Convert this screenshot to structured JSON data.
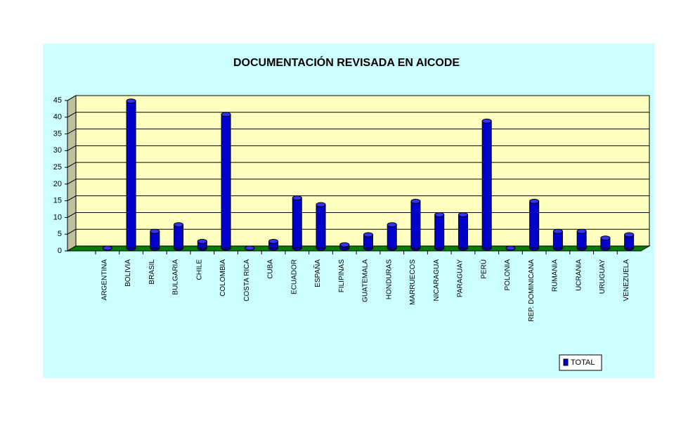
{
  "chart_data": {
    "type": "bar",
    "title": "DOCUMENTACIÓN REVISADA EN AICODE",
    "categories": [
      "ARGENTINA",
      "BOLIVIA",
      "BRASIL",
      "BULGARIA",
      "CHILE",
      "COLOMBIA",
      "COSTA RICA",
      "CUBA",
      "ECUADOR",
      "ESPAÑA",
      "FILIPINAS",
      "GUATEMALA",
      "HONDURAS",
      "MARRUECOS",
      "NICARAGUA",
      "PARAGUAY",
      "PERÚ",
      "POLONIA",
      "REP. DOMINICANA",
      "RUMANIA",
      "UCRANIA",
      "URUGUAY",
      "VENEZUELA"
    ],
    "series": [
      {
        "name": "TOTAL",
        "color": "#0000cc",
        "values": [
          0,
          44,
          5,
          7,
          2,
          40,
          0,
          2,
          15,
          13,
          1,
          4,
          7,
          14,
          10,
          10,
          38,
          0,
          14,
          5,
          5,
          3,
          4
        ]
      }
    ],
    "ylim": [
      0,
      45
    ],
    "yticks": [
      0,
      5,
      10,
      15,
      20,
      25,
      30,
      35,
      40,
      45
    ],
    "grid": true,
    "legend": "bottom-right"
  }
}
